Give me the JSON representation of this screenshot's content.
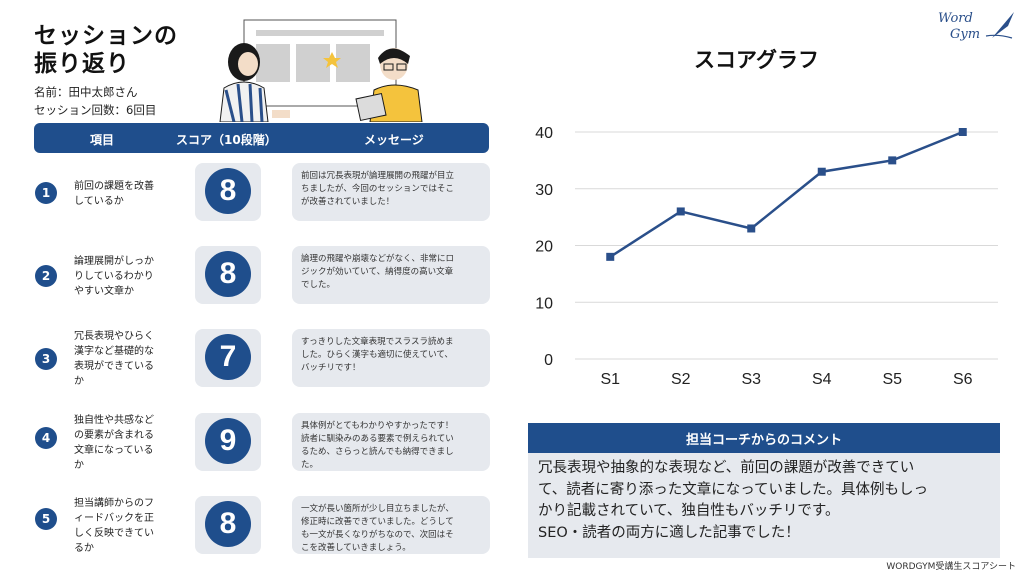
{
  "header": {
    "title_line1": "セッションの",
    "title_line2": "振り返り",
    "name": "名前：田中太郎さん",
    "sessions": "セッション回数：6回目"
  },
  "logo": {
    "line1": "Word",
    "line2": "Gym"
  },
  "table": {
    "col_item": "項目",
    "col_score": "スコア（10段階）",
    "col_message": "メッセージ",
    "rows": [
      {
        "num": "1",
        "item": "前回の課題を改善\nしているか",
        "score": "8",
        "message": "前回は冗長表現が論理展開の飛躍が目立\nちましたが、今回のセッションではそこ\nが改善されていました！"
      },
      {
        "num": "2",
        "item": "論理展開がしっか\nりしているわかり\nやすい文章か",
        "score": "8",
        "message": "論理の飛躍や崩壊などがなく、非常にロ\nジックが効いていて、納得度の高い文章\nでした。"
      },
      {
        "num": "3",
        "item": "冗長表現やひらく\n漢字など基礎的な\n表現ができている\nか",
        "score": "7",
        "message": "すっきりした文章表現でスラスラ読めま\nした。ひらく漢字も適切に使えていて、\nバッチリです！"
      },
      {
        "num": "4",
        "item": "独自性や共感など\nの要素が含まれる\n文章になっている\nか",
        "score": "9",
        "message": "具体例がとてもわかりやすかったです！\n読者に馴染みのある要素で例えられてい\nるため、さらっと読んでも納得できまし\nた。"
      },
      {
        "num": "5",
        "item": "担当講師からのフ\nィードバックを正\nしく反映できてい\nるか",
        "score": "8",
        "message": "一文が長い箇所が少し目立ちましたが、\n修正時に改善できていました。どうして\nも一文が長くなりがちなので、次回はそ\nこを改善していきましょう。"
      }
    ]
  },
  "chart_title": "スコアグラフ",
  "chart_data": {
    "type": "line",
    "categories": [
      "S1",
      "S2",
      "S3",
      "S4",
      "S5",
      "S6"
    ],
    "values": [
      18,
      26,
      23,
      33,
      35,
      40
    ],
    "ylim": [
      0,
      40
    ],
    "yticks": [
      "0",
      "10",
      "20",
      "30",
      "40"
    ],
    "grid": true,
    "color": "#2a4f8a"
  },
  "comment": {
    "title": "担当コーチからのコメント",
    "body": "冗長表現や抽象的な表現など、前回の課題が改善できてい\nて、読者に寄り添った文章になっていました。具体例もしっ\nかり記載されていて、独自性もバッチリです。\nSEO・読者の両方に適した記事でした！"
  },
  "footer": "WORDGYM受講生スコアシート",
  "colors": {
    "accent": "#1f4e8c",
    "panel": "#e6e9ee"
  }
}
